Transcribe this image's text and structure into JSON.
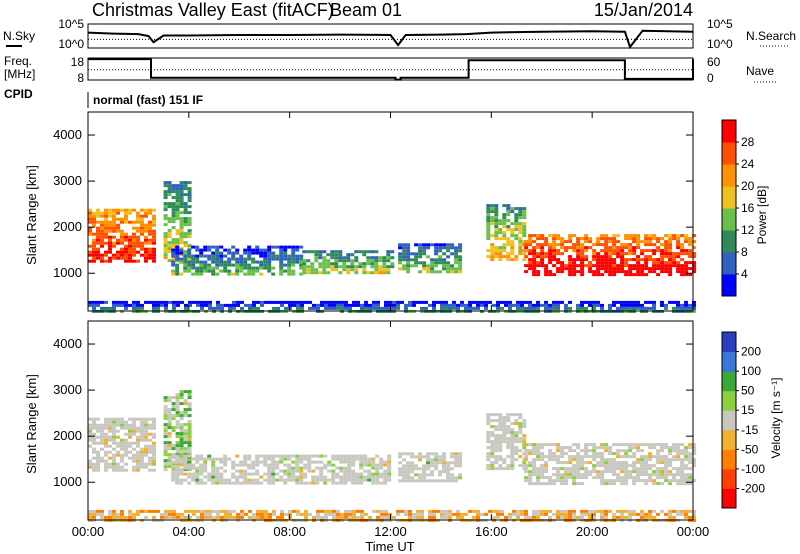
{
  "header": {
    "station": "Christmas Valley East (fitACF)",
    "beam": "Beam 01",
    "date": "15/Jan/2014"
  },
  "noise_panel": {
    "left_label": "N.Sky",
    "left_ticks": [
      "10^5",
      "10^0"
    ],
    "right_ticks": [
      "10^5",
      "10^0"
    ],
    "right_label": "N.Search"
  },
  "freq_panel": {
    "left_label_line1": "Freq.",
    "left_label_line2": "[MHz]",
    "left_ticks": [
      "18",
      "8"
    ],
    "right_ticks": [
      "60",
      "0"
    ],
    "right_label": "Nave"
  },
  "cpid": {
    "label": "CPID",
    "value": "normal (fast) 151 IF"
  },
  "x_axis": {
    "label": "Time UT",
    "ticks": [
      "00:00",
      "04:00",
      "08:00",
      "12:00",
      "16:00",
      "20:00",
      "00:00"
    ]
  },
  "power_panel": {
    "y_label": "Slant Range [km]",
    "y_ticks": [
      "1000",
      "2000",
      "3000",
      "4000"
    ],
    "colorbar_label": "Power [dB]",
    "colorbar_ticks": [
      "4",
      "8",
      "12",
      "16",
      "20",
      "24",
      "28"
    ]
  },
  "velocity_panel": {
    "y_label": "Slant Range [km]",
    "y_ticks": [
      "1000",
      "2000",
      "3000",
      "4000"
    ],
    "colorbar_label": "Velocity [m s⁻¹]",
    "colorbar_ticks": [
      "200",
      "100",
      "50",
      "15",
      "-15",
      "-50",
      "-100",
      "-200"
    ]
  },
  "colors": {
    "power_scale": [
      "#0000ff",
      "#3060c0",
      "#2e8b57",
      "#6abf4b",
      "#f0c020",
      "#ff9000",
      "#ff5000",
      "#ff0000"
    ],
    "velocity_scale": [
      "#2a3fbf",
      "#3878d8",
      "#3aa83a",
      "#8ad040",
      "#c8c8c0",
      "#f0b030",
      "#ff8000",
      "#ff4000",
      "#ff0000"
    ],
    "ground_scatter": "#c8c8c0"
  },
  "chart_data": {
    "type": "heatmap",
    "x_unit": "hours UT",
    "x_range": [
      0,
      24
    ],
    "y_unit": "km",
    "y_range": [
      180,
      4500
    ],
    "noise": {
      "sky_time": [
        0,
        1,
        2,
        2.4,
        2.6,
        3,
        4,
        6,
        8,
        10,
        12,
        12.3,
        12.6,
        14,
        15,
        16,
        18,
        20,
        21.3,
        21.5,
        22,
        23,
        24
      ],
      "sky_level": [
        3.2,
        3.0,
        2.9,
        2.5,
        1.2,
        2.6,
        2.6,
        2.7,
        2.7,
        2.8,
        2.7,
        0.6,
        2.7,
        2.8,
        2.9,
        3.2,
        3.4,
        3.5,
        3.4,
        0.2,
        3.6,
        3.5,
        3.4
      ],
      "search_level": 1.8
    },
    "frequency": {
      "time": [
        0,
        2.45,
        2.5,
        12.0,
        12.2,
        12.4,
        15.0,
        15.1,
        21.2,
        21.3,
        24
      ],
      "value": [
        17.5,
        17.5,
        9.0,
        9.0,
        8.2,
        9.0,
        9.0,
        17.0,
        17.0,
        8.5,
        17.5
      ],
      "nave": 28
    },
    "power": {
      "unit": "dB",
      "range": [
        0,
        30
      ],
      "regions": [
        {
          "t0": 0.0,
          "t1": 2.6,
          "r0": 1250,
          "r1": 2400,
          "db": 24
        },
        {
          "t0": 3.0,
          "t1": 4.0,
          "r0": 1300,
          "r1": 3000,
          "db": 12
        },
        {
          "t0": 3.3,
          "t1": 8.5,
          "r0": 1000,
          "r1": 1600,
          "db": 8
        },
        {
          "t0": 8.5,
          "t1": 12.0,
          "r0": 1000,
          "r1": 1500,
          "db": 12
        },
        {
          "t0": 12.3,
          "t1": 14.8,
          "r0": 1000,
          "r1": 1650,
          "db": 10
        },
        {
          "t0": 15.8,
          "t1": 17.3,
          "r0": 1300,
          "r1": 2500,
          "db": 14
        },
        {
          "t0": 17.3,
          "t1": 24.0,
          "r0": 950,
          "r1": 1850,
          "db": 26
        },
        {
          "t0": 0.0,
          "t1": 24.0,
          "r0": 180,
          "r1": 400,
          "db": 6
        }
      ]
    },
    "velocity": {
      "unit": "m/s",
      "range": [
        -200,
        200
      ],
      "regions": [
        {
          "t0": 0.0,
          "t1": 2.6,
          "r0": 1250,
          "r1": 2400,
          "v": 0
        },
        {
          "t0": 3.0,
          "t1": 4.0,
          "r0": 1300,
          "r1": 3000,
          "v": 30
        },
        {
          "t0": 3.3,
          "t1": 12.0,
          "r0": 1000,
          "r1": 1600,
          "v": 20
        },
        {
          "t0": 12.3,
          "t1": 14.8,
          "r0": 1000,
          "r1": 1650,
          "v": 10
        },
        {
          "t0": 15.8,
          "t1": 17.3,
          "r0": 1300,
          "r1": 2500,
          "v": 0
        },
        {
          "t0": 17.3,
          "t1": 24.0,
          "r0": 950,
          "r1": 1850,
          "v": 0
        },
        {
          "t0": 0.0,
          "t1": 24.0,
          "r0": 180,
          "r1": 400,
          "v": -40
        }
      ]
    }
  }
}
